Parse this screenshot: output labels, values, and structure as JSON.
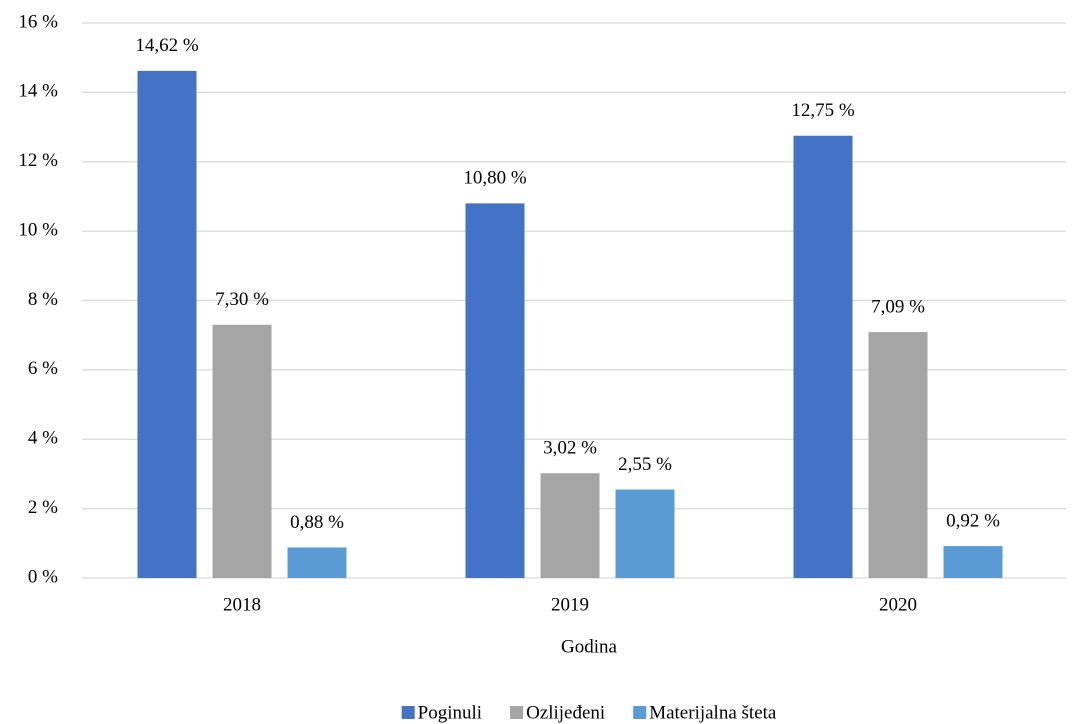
{
  "chart_data": {
    "type": "bar",
    "categories": [
      "2018",
      "2019",
      "2020"
    ],
    "x_label": "Godina",
    "series": [
      {
        "name": "Poginuli",
        "color": "#4472c4",
        "values": [
          14.62,
          10.8,
          12.75
        ],
        "value_labels": [
          "14,62 %",
          "10,80 %",
          "12,75 %"
        ]
      },
      {
        "name": "Ozlijeđeni",
        "color": "#a5a5a5",
        "values": [
          7.3,
          3.02,
          7.09
        ],
        "value_labels": [
          "7,30 %",
          "3,02 %",
          "7,09 %"
        ]
      },
      {
        "name": "Materijalna šteta",
        "color": "#5b9bd5",
        "values": [
          0.88,
          2.55,
          0.92
        ],
        "value_labels": [
          "0,88 %",
          "2,55 %",
          "0,92 %"
        ]
      }
    ],
    "ylim": [
      0,
      16
    ],
    "yticks": [
      {
        "value": 0,
        "label": "0 %"
      },
      {
        "value": 2,
        "label": "2 %"
      },
      {
        "value": 4,
        "label": "4 %"
      },
      {
        "value": 6,
        "label": "6 %"
      },
      {
        "value": 8,
        "label": "8 %"
      },
      {
        "value": 10,
        "label": "10 %"
      },
      {
        "value": 12,
        "label": "12 %"
      },
      {
        "value": 14,
        "label": "14 %"
      },
      {
        "value": 16,
        "label": "16 %"
      }
    ],
    "grid": true,
    "legend": "bottom"
  }
}
